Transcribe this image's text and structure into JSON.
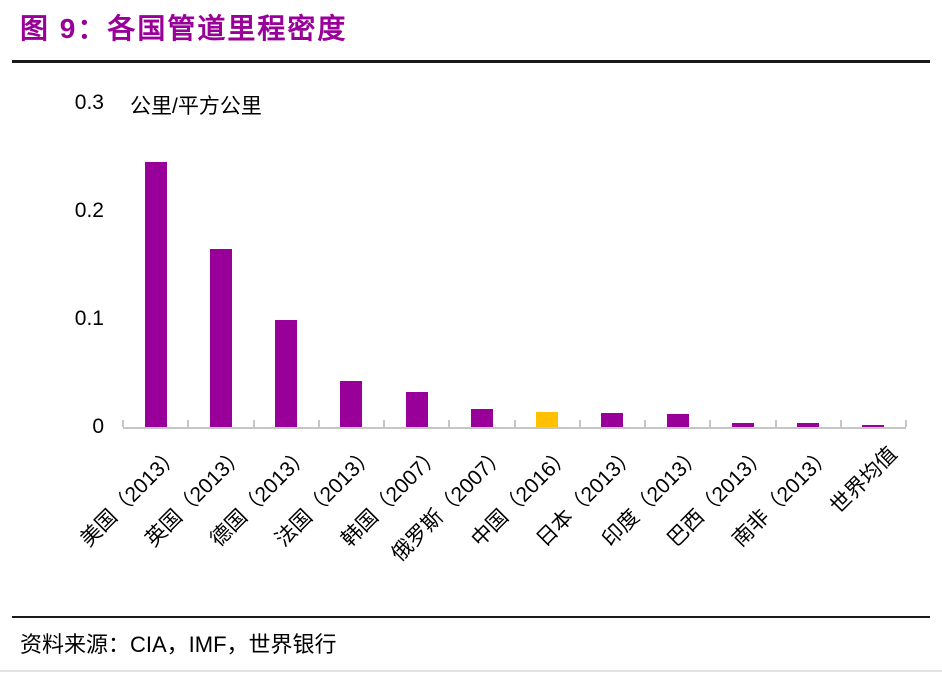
{
  "figure": {
    "title": "图 9：各国管道里程密度",
    "source": "资料来源：CIA，IMF，世界银行"
  },
  "chart_data": {
    "type": "bar",
    "title": "各国管道里程密度",
    "unit_label": "公里/平方公里",
    "categories": [
      "美国（2013）",
      "英国（2013）",
      "德国（2013）",
      "法国（2013）",
      "韩国（2007）",
      "俄罗斯（2007）",
      "中国（2016）",
      "日本（2013）",
      "印度（2013）",
      "巴西（2013）",
      "南非（2013）",
      "世界均值"
    ],
    "values": [
      0.245,
      0.165,
      0.099,
      0.043,
      0.032,
      0.017,
      0.014,
      0.013,
      0.012,
      0.004,
      0.004,
      0.002
    ],
    "highlight_index": 6,
    "ylim": [
      0,
      0.3
    ],
    "yticks": [
      "0",
      "0.1",
      "0.2",
      "0.3"
    ],
    "grid": false,
    "legend": false,
    "bar_color": "#990099",
    "highlight_color": "#FFC000",
    "axis_color": "#c6c6c6"
  },
  "colors": {
    "title": "#990099",
    "rule": "#1a1a1a",
    "text": "#000000"
  }
}
